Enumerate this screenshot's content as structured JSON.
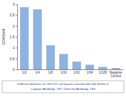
{
  "chart_data": {
    "type": "bar",
    "y_label": "OD450nM",
    "categories": [
      "1/2",
      "1/4",
      "1/8",
      "1/16",
      "1/32",
      "1/64",
      "1/128",
      "Negative Control"
    ],
    "values": [
      2.85,
      2.75,
      1.1,
      0.7,
      0.35,
      0.2,
      0.1,
      0.05
    ],
    "color": "#8db3e2",
    "ylim": [
      0,
      3
    ],
    "yticks": [
      0,
      0.5,
      1,
      1.5,
      2,
      2.5,
      3
    ],
    "grid": false,
    "annotations": [
      "Different dilutions of CHO-K1 cell lysates transfected with Emilin-2",
      "Capture Antibody: 167;  Detector Antibody: 169"
    ]
  }
}
